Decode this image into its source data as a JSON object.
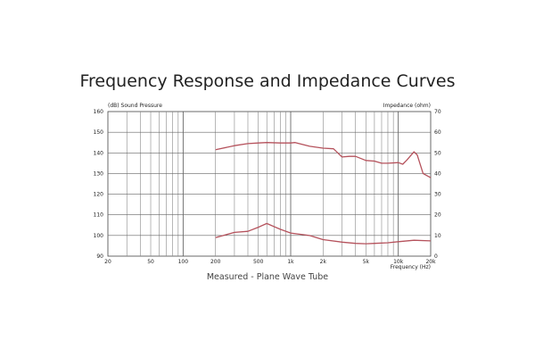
{
  "chart_data": {
    "type": "line",
    "title": "Frequency Response and Impedance Curves",
    "caption": "Measured - Plane Wave Tube",
    "ylabel_left": "(dB)  Sound Pressure",
    "ylabel_right": "Impedance  (ohm)",
    "xlabel": "Frequency  (Hz)",
    "x_scale": "log",
    "xlim": [
      20,
      20000
    ],
    "ylim_left": [
      90,
      160
    ],
    "ylim_right": [
      0,
      70
    ],
    "x_ticks": [
      {
        "v": 20,
        "l": "20"
      },
      {
        "v": 50,
        "l": "50"
      },
      {
        "v": 100,
        "l": "100"
      },
      {
        "v": 200,
        "l": "200"
      },
      {
        "v": 500,
        "l": "500"
      },
      {
        "v": 1000,
        "l": "1k"
      },
      {
        "v": 2000,
        "l": "2k"
      },
      {
        "v": 5000,
        "l": "5k"
      },
      {
        "v": 10000,
        "l": "10k"
      },
      {
        "v": 20000,
        "l": "20k"
      }
    ],
    "y_ticks_left": [
      90,
      100,
      110,
      120,
      130,
      140,
      150,
      160
    ],
    "y_ticks_right": [
      0,
      10,
      20,
      30,
      40,
      50,
      60,
      70
    ],
    "grid": true,
    "line_color": "#b5525c",
    "series": [
      {
        "x": [
          200,
          300,
          400,
          500,
          600,
          800,
          1000,
          1100,
          1500,
          2000,
          2500,
          3000,
          3500,
          4000,
          5000,
          6000,
          7000,
          8000,
          10000,
          11000,
          12000,
          14000,
          15000,
          17000,
          20000
        ],
        "y": [
          141.5,
          143.5,
          144.5,
          144.8,
          145,
          144.8,
          144.8,
          145,
          143.2,
          142.3,
          142,
          138,
          138.3,
          138.3,
          136.3,
          136,
          135,
          135,
          135.3,
          134.5,
          136.5,
          140.5,
          139,
          130,
          128
        ]
      },
      {
        "x": [
          200,
          300,
          400,
          500,
          600,
          800,
          1000,
          1500,
          2000,
          3000,
          4000,
          5000,
          6000,
          8000,
          10000,
          14000,
          20000
        ],
        "y": [
          99,
          101.5,
          102,
          104,
          105.8,
          103,
          101.2,
          100,
          98,
          96.8,
          96.2,
          96,
          96.2,
          96.5,
          97,
          97.7,
          97.4
        ]
      }
    ]
  }
}
